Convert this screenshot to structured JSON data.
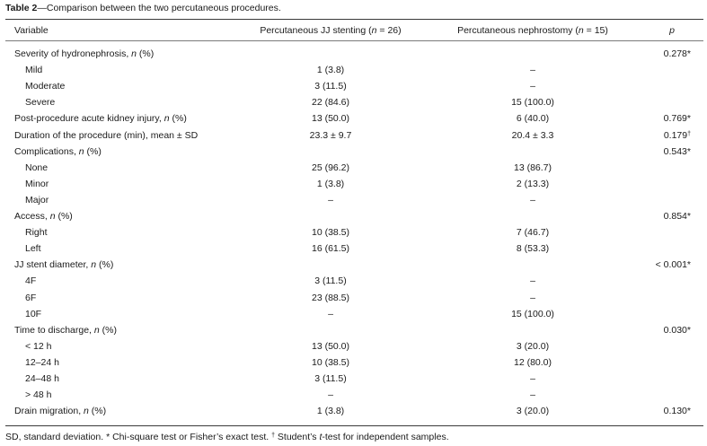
{
  "caption": {
    "label": "Table 2",
    "text": "—Comparison between the two percutaneous procedures."
  },
  "headers": {
    "variable": "Variable",
    "jj": "Percutaneous JJ stenting (n = 26)",
    "nep": "Percutaneous nephrostomy (n = 15)",
    "p": "p"
  },
  "rows": [
    {
      "label": "Severity of hydronephrosis, n (%)",
      "indent": false,
      "jj": "",
      "nep": "",
      "p": "0.278*"
    },
    {
      "label": "Mild",
      "indent": true,
      "jj": "1 (3.8)",
      "nep": "–",
      "p": ""
    },
    {
      "label": "Moderate",
      "indent": true,
      "jj": "3 (11.5)",
      "nep": "–",
      "p": ""
    },
    {
      "label": "Severe",
      "indent": true,
      "jj": "22 (84.6)",
      "nep": "15 (100.0)",
      "p": ""
    },
    {
      "label": "Post-procedure acute kidney injury, n (%)",
      "indent": false,
      "jj": "13 (50.0)",
      "nep": "6 (40.0)",
      "p": "0.769*"
    },
    {
      "label": "Duration of the procedure (min), mean ± SD",
      "indent": false,
      "jj": "23.3 ± 9.7",
      "nep": "20.4 ± 3.3",
      "p": "0.179†"
    },
    {
      "label": "Complications, n (%)",
      "indent": false,
      "jj": "",
      "nep": "",
      "p": "0.543*"
    },
    {
      "label": "None",
      "indent": true,
      "jj": "25 (96.2)",
      "nep": "13 (86.7)",
      "p": ""
    },
    {
      "label": "Minor",
      "indent": true,
      "jj": "1 (3.8)",
      "nep": "2 (13.3)",
      "p": ""
    },
    {
      "label": "Major",
      "indent": true,
      "jj": "–",
      "nep": "–",
      "p": ""
    },
    {
      "label": "Access, n (%)",
      "indent": false,
      "jj": "",
      "nep": "",
      "p": "0.854*"
    },
    {
      "label": "Right",
      "indent": true,
      "jj": "10 (38.5)",
      "nep": "7 (46.7)",
      "p": ""
    },
    {
      "label": "Left",
      "indent": true,
      "jj": "16 (61.5)",
      "nep": "8 (53.3)",
      "p": ""
    },
    {
      "label": "JJ stent diameter, n (%)",
      "indent": false,
      "jj": "",
      "nep": "",
      "p": "< 0.001*"
    },
    {
      "label": "4F",
      "indent": true,
      "jj": "3 (11.5)",
      "nep": "–",
      "p": ""
    },
    {
      "label": "6F",
      "indent": true,
      "jj": "23 (88.5)",
      "nep": "–",
      "p": ""
    },
    {
      "label": "10F",
      "indent": true,
      "jj": "–",
      "nep": "15 (100.0)",
      "p": ""
    },
    {
      "label": "Time to discharge, n (%)",
      "indent": false,
      "jj": "",
      "nep": "",
      "p": "0.030*"
    },
    {
      "label": "< 12 h",
      "indent": true,
      "jj": "13 (50.0)",
      "nep": "3 (20.0)",
      "p": ""
    },
    {
      "label": "12–24 h",
      "indent": true,
      "jj": "10 (38.5)",
      "nep": "12 (80.0)",
      "p": ""
    },
    {
      "label": "24–48 h",
      "indent": true,
      "jj": "3 (11.5)",
      "nep": "–",
      "p": ""
    },
    {
      "label": "> 48 h",
      "indent": true,
      "jj": "–",
      "nep": "–",
      "p": ""
    },
    {
      "label": "Drain migration, n (%)",
      "indent": false,
      "jj": "1 (3.8)",
      "nep": "3 (20.0)",
      "p": "0.130*"
    }
  ],
  "footnote": "SD, standard deviation. * Chi-square test or Fisher’s exact test. † Student’s t-test for independent samples."
}
